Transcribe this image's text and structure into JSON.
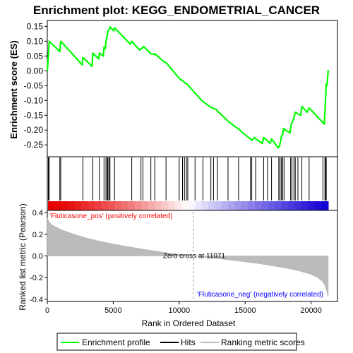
{
  "chart_data": {
    "type": "line",
    "title": "Enrichment plot: KEGG_ENDOMETRIAL_CANCER",
    "top_panel": {
      "ylabel": "Enrichment score (ES)",
      "ylim": [
        -0.29,
        0.17
      ],
      "yticks": [
        -0.25,
        -0.2,
        -0.15,
        -0.1,
        -0.05,
        0.0,
        0.05,
        0.1,
        0.15
      ],
      "ytick_labels": [
        "-0.25",
        "-0.20",
        "-0.15",
        "-0.10",
        "-0.05",
        "0.00",
        "0.05",
        "0.10",
        "0.15"
      ],
      "series": [
        {
          "name": "Enrichment profile",
          "color": "#00ff00",
          "x": [
            0,
            80,
            150,
            950,
            1020,
            2650,
            2700,
            3400,
            3450,
            3900,
            3950,
            4250,
            4300,
            4400,
            4450,
            4550,
            4600,
            4700,
            4750,
            5050,
            5100,
            6300,
            6400,
            7000,
            7100,
            7250,
            7300,
            7800,
            7850,
            8100,
            8150,
            8850,
            9000,
            9900,
            10100,
            10250,
            10400,
            10600,
            11100,
            11700,
            12300,
            12500,
            12800,
            13000,
            13600,
            13700,
            14600,
            14700,
            15400,
            15500,
            15700,
            15800,
            16300,
            16400,
            16900,
            17000,
            17500,
            17600,
            17700,
            17750,
            17850,
            17900,
            18400,
            18500,
            18700,
            18800,
            19200,
            19300,
            19700,
            19850,
            21000,
            21050,
            21100,
            21150,
            21200,
            21300
          ],
          "y": [
            0.0,
            0.05,
            0.1,
            0.065,
            0.1,
            0.02,
            0.045,
            0.015,
            0.06,
            0.04,
            0.06,
            0.05,
            0.08,
            0.075,
            0.1,
            0.12,
            0.135,
            0.14,
            0.148,
            0.135,
            0.145,
            0.09,
            0.1,
            0.07,
            0.075,
            0.078,
            0.082,
            0.06,
            0.058,
            0.055,
            0.058,
            0.03,
            0.028,
            -0.02,
            -0.03,
            -0.032,
            -0.04,
            -0.045,
            -0.07,
            -0.1,
            -0.12,
            -0.125,
            -0.13,
            -0.14,
            -0.165,
            -0.17,
            -0.2,
            -0.205,
            -0.23,
            -0.235,
            -0.225,
            -0.23,
            -0.245,
            -0.225,
            -0.245,
            -0.23,
            -0.26,
            -0.255,
            -0.235,
            -0.22,
            -0.215,
            -0.195,
            -0.21,
            -0.18,
            -0.16,
            -0.14,
            -0.15,
            -0.12,
            -0.14,
            -0.125,
            -0.18,
            -0.14,
            -0.09,
            -0.045,
            -0.05,
            0.003
          ]
        }
      ]
    },
    "hits": {
      "name": "Hits",
      "x": [
        80,
        150,
        950,
        1020,
        2700,
        3450,
        3950,
        4300,
        4450,
        4550,
        4600,
        4700,
        4750,
        5100,
        6400,
        7100,
        7250,
        7850,
        8150,
        9000,
        10000,
        10250,
        10400,
        10550,
        10650,
        11200,
        11800,
        12400,
        12600,
        12900,
        13700,
        14500,
        15400,
        15500,
        15800,
        16400,
        16700,
        17000,
        17550,
        17650,
        17750,
        17850,
        17950,
        18450,
        18550,
        18700,
        18800,
        19000,
        19300,
        19850,
        20900,
        21050,
        21100,
        21150
      ]
    },
    "rank_metric": {
      "name": "Ranking metric scores",
      "ylabel": "Ranked list metric (Pearson)",
      "xlabel": "Rank in Ordered Dataset",
      "xlim": [
        0,
        22000
      ],
      "xticks": [
        0,
        5000,
        10000,
        15000,
        20000
      ],
      "xtick_labels": [
        "0",
        "5000",
        "10000",
        "15000",
        "20000"
      ],
      "ylim": [
        -0.42,
        0.42
      ],
      "yticks": [
        -0.4,
        -0.2,
        0.0,
        0.2,
        0.4
      ],
      "ytick_labels": [
        "-0.4",
        "-0.2",
        "0.0",
        "0.2",
        "0.4"
      ],
      "n_genes": 21300,
      "x": [
        0,
        100,
        300,
        600,
        1000,
        2000,
        3000,
        4000,
        5000,
        6000,
        7000,
        8000,
        9000,
        10000,
        11071,
        12000,
        13000,
        14000,
        15000,
        16000,
        17000,
        18000,
        19000,
        20000,
        20500,
        20800,
        21000,
        21100,
        21200,
        21300
      ],
      "y": [
        0.35,
        0.32,
        0.29,
        0.27,
        0.245,
        0.2,
        0.165,
        0.135,
        0.11,
        0.088,
        0.068,
        0.048,
        0.03,
        0.015,
        0.0,
        -0.012,
        -0.025,
        -0.04,
        -0.055,
        -0.07,
        -0.09,
        -0.11,
        -0.135,
        -0.17,
        -0.2,
        -0.23,
        -0.26,
        -0.29,
        -0.33,
        -0.38
      ],
      "zero_cross": 11071,
      "zero_cross_label": "Zero cross at 11071",
      "pos_label": "'Fluticasone_pos' (positively correlated)",
      "neg_label": "'Fluticasone_neg' (negatively correlated)",
      "pos_color": "#ff0000",
      "neg_color": "#0000ff"
    },
    "legend": {
      "placement": "bottom",
      "entries": [
        {
          "label": "Enrichment profile",
          "color": "#00ff00"
        },
        {
          "label": "Hits",
          "color": "#000000"
        },
        {
          "label": "Ranking metric scores",
          "color": "#bbbbbb"
        }
      ]
    }
  }
}
